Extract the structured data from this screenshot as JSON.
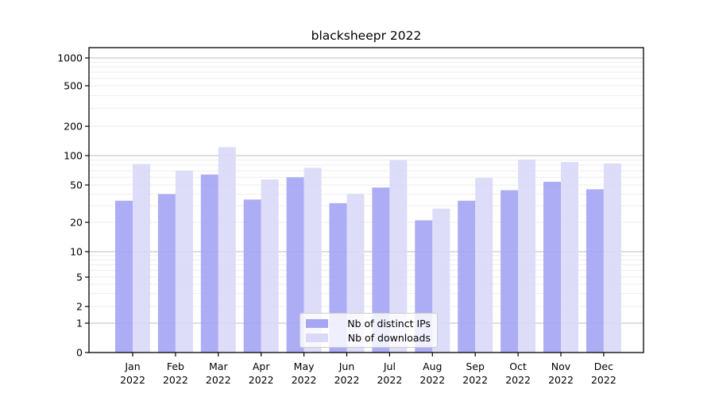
{
  "chart_data": {
    "type": "bar",
    "title": "blacksheepr 2022",
    "categories": [
      "Jan",
      "Feb",
      "Mar",
      "Apr",
      "May",
      "Jun",
      "Jul",
      "Aug",
      "Sep",
      "Oct",
      "Nov",
      "Dec"
    ],
    "year_label": "2022",
    "series": [
      {
        "name": "Nb of distinct IPs",
        "color": "#a6a6f4",
        "values": [
          34,
          40,
          64,
          35,
          60,
          32,
          47,
          21,
          34,
          44,
          54,
          45
        ]
      },
      {
        "name": "Nb of downloads",
        "color": "#dadaf8",
        "values": [
          82,
          70,
          122,
          57,
          75,
          40,
          90,
          28,
          59,
          91,
          86,
          83
        ]
      }
    ],
    "yscale": "symlog",
    "yticks": [
      0,
      1,
      2,
      5,
      10,
      20,
      50,
      100,
      200,
      500,
      1000
    ],
    "major_gridline_values": [
      1,
      10,
      100,
      1000
    ],
    "minor_gridline_values": [
      3,
      4,
      6,
      7,
      8,
      9,
      30,
      40,
      60,
      70,
      80,
      90,
      300,
      400,
      600,
      700,
      800,
      900
    ],
    "ylim": [
      0,
      1000
    ],
    "grid": true,
    "legend_position": "lower center",
    "colors": {
      "major_grid": "#bdbdbd",
      "minor_grid": "#ededed",
      "axis": "#000000",
      "text": "#000000",
      "background": "#ffffff"
    }
  }
}
